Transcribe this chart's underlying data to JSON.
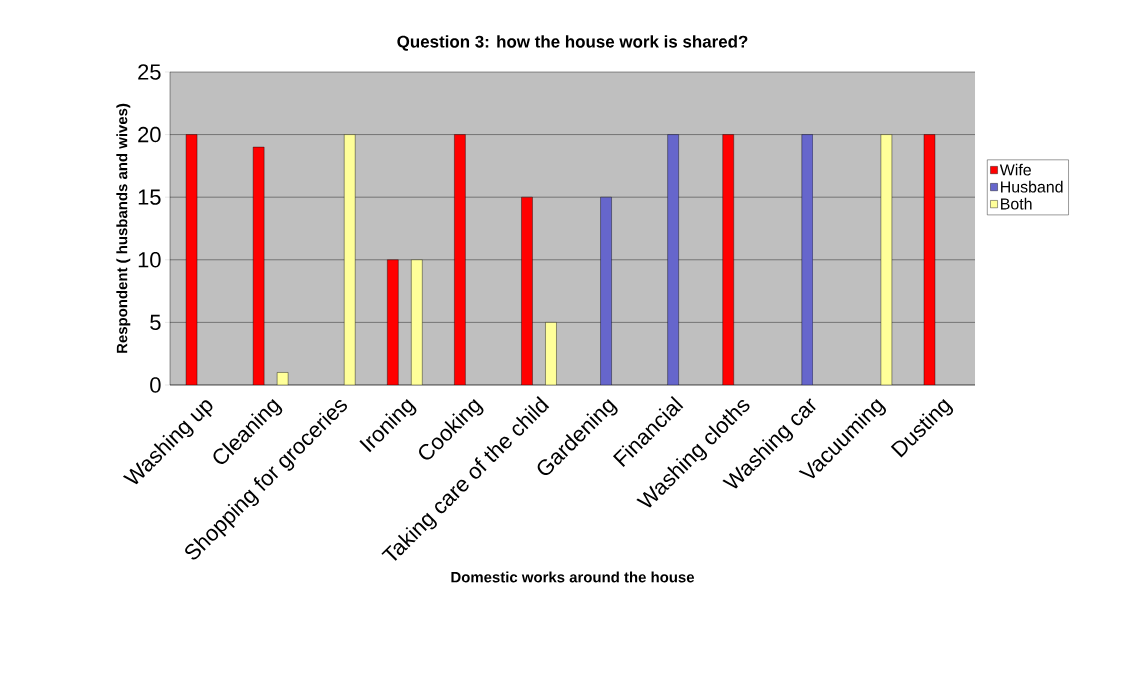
{
  "chart_data": {
    "type": "bar",
    "title": "Question 3: how the house work is shared?",
    "xlabel": "Domestic works around the house",
    "ylabel": "Respondent ( husbands and wives)",
    "categories": [
      "Washing up",
      "Cleaning",
      "Shopping for groceries",
      "Ironing",
      "Cooking",
      "Taking care of the child",
      "Gardening",
      "Financial",
      "Washing cloths",
      "Washing car",
      "Vacuuming",
      "Dusting"
    ],
    "series": [
      {
        "name": "Wife",
        "color": "#ff0000",
        "values": [
          20,
          19,
          null,
          10,
          20,
          15,
          null,
          null,
          20,
          null,
          null,
          20
        ]
      },
      {
        "name": "Husband",
        "color": "#6666cc",
        "values": [
          null,
          null,
          null,
          null,
          null,
          null,
          15,
          20,
          null,
          20,
          null,
          null
        ]
      },
      {
        "name": "Both",
        "color": "#ffff99",
        "values": [
          null,
          1,
          20,
          10,
          null,
          5,
          null,
          null,
          null,
          null,
          20,
          null
        ]
      }
    ],
    "ylim": [
      0,
      25
    ],
    "yticks": [
      0,
      5,
      10,
      15,
      20,
      25
    ],
    "grid": "y",
    "legend": "right"
  }
}
